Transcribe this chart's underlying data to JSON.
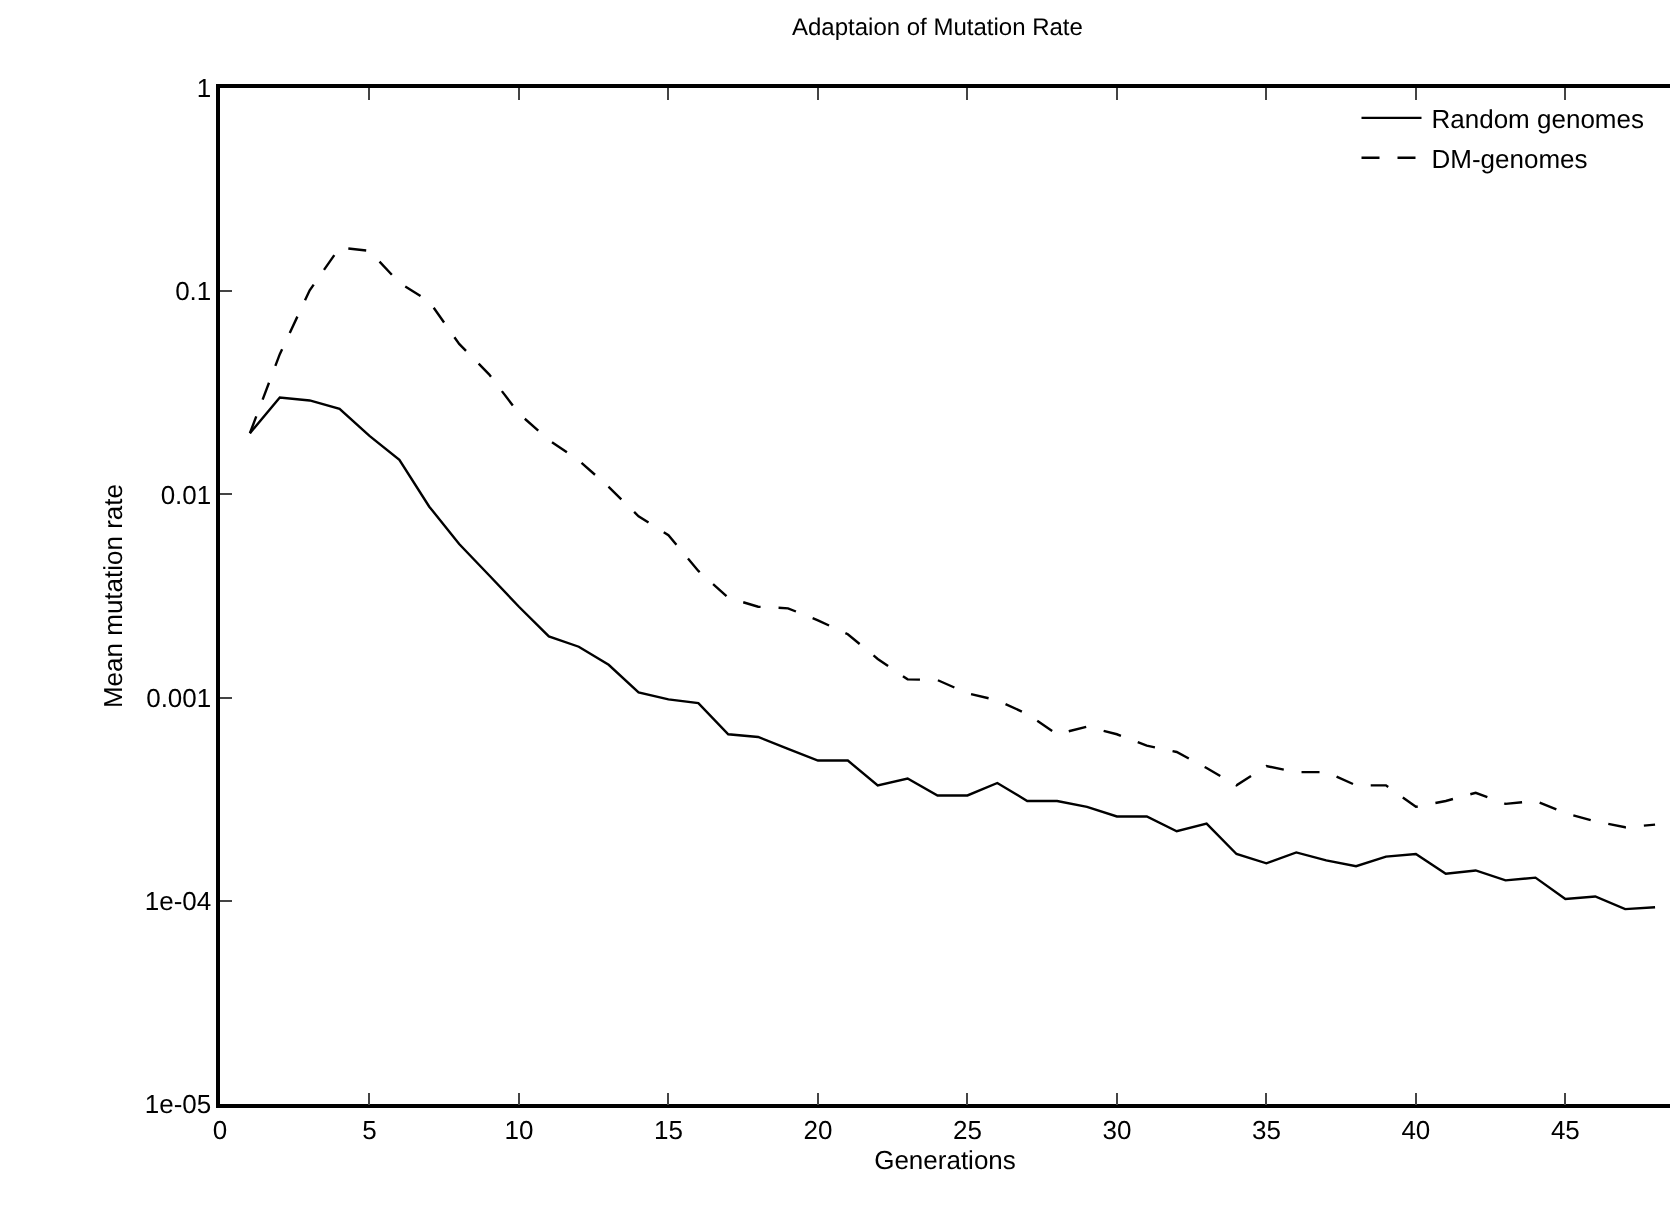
{
  "chart_data": {
    "type": "line",
    "title": "Adaptaion of Mutation Rate",
    "xlabel": "Generations",
    "ylabel": "Mean mutation rate",
    "x": [
      1,
      2,
      3,
      4,
      5,
      6,
      7,
      8,
      9,
      10,
      11,
      12,
      13,
      14,
      15,
      16,
      17,
      18,
      19,
      20,
      21,
      22,
      23,
      24,
      25,
      26,
      27,
      28,
      29,
      30,
      31,
      32,
      33,
      34,
      35,
      36,
      37,
      38,
      39,
      40,
      41,
      42,
      43,
      44,
      45,
      46,
      47,
      48
    ],
    "series": [
      {
        "name": "Random genomes",
        "color": "#000000",
        "line_style": "solid",
        "values": [
          0.02,
          0.03,
          0.029,
          0.0264,
          0.0194,
          0.0148,
          0.0087,
          0.0057,
          0.004,
          0.0028,
          0.002,
          0.00178,
          0.00145,
          0.00106,
          0.00098,
          0.00094,
          0.00066,
          0.00064,
          0.00056,
          0.00049,
          0.00049,
          0.00037,
          0.0004,
          0.00033,
          0.00033,
          0.00038,
          0.00031,
          0.00031,
          0.00029,
          0.00026,
          0.00026,
          0.00022,
          0.00024,
          0.00017,
          0.000153,
          0.000173,
          0.000158,
          0.000148,
          0.000165,
          0.00017,
          0.000136,
          0.000141,
          0.000126,
          0.00013,
          0.000102,
          0.000105,
          9.1e-05,
          9.3e-05
        ]
      },
      {
        "name": "DM-genomes",
        "color": "#000000",
        "line_style": "dashed",
        "values": [
          0.02,
          0.049,
          0.101,
          0.164,
          0.158,
          0.11,
          0.089,
          0.055,
          0.039,
          0.025,
          0.0185,
          0.0147,
          0.0109,
          0.0078,
          0.0063,
          0.0042,
          0.0031,
          0.0028,
          0.00275,
          0.0024,
          0.00205,
          0.00155,
          0.00123,
          0.00122,
          0.00105,
          0.00097,
          0.00083,
          0.00066,
          0.00072,
          0.00066,
          0.00058,
          0.00054,
          0.00045,
          0.00037,
          0.00046,
          0.00043,
          0.00043,
          0.00037,
          0.00037,
          0.00029,
          0.00031,
          0.00034,
          0.0003,
          0.00031,
          0.00027,
          0.000246,
          0.00023,
          0.000237
        ]
      }
    ],
    "log": "y",
    "xlim": [
      0,
      48.5
    ],
    "xticks": [
      0,
      5,
      10,
      15,
      20,
      25,
      30,
      35,
      40,
      45
    ],
    "ylim": [
      1e-05,
      1
    ],
    "yticks": [
      1,
      0.1,
      0.01,
      0.001,
      {
        "value": 0.0001,
        "label": "1e-04"
      },
      {
        "value": 1e-05,
        "label": "1e-05"
      }
    ],
    "grid": false,
    "legend": "top right",
    "marker": "none"
  }
}
